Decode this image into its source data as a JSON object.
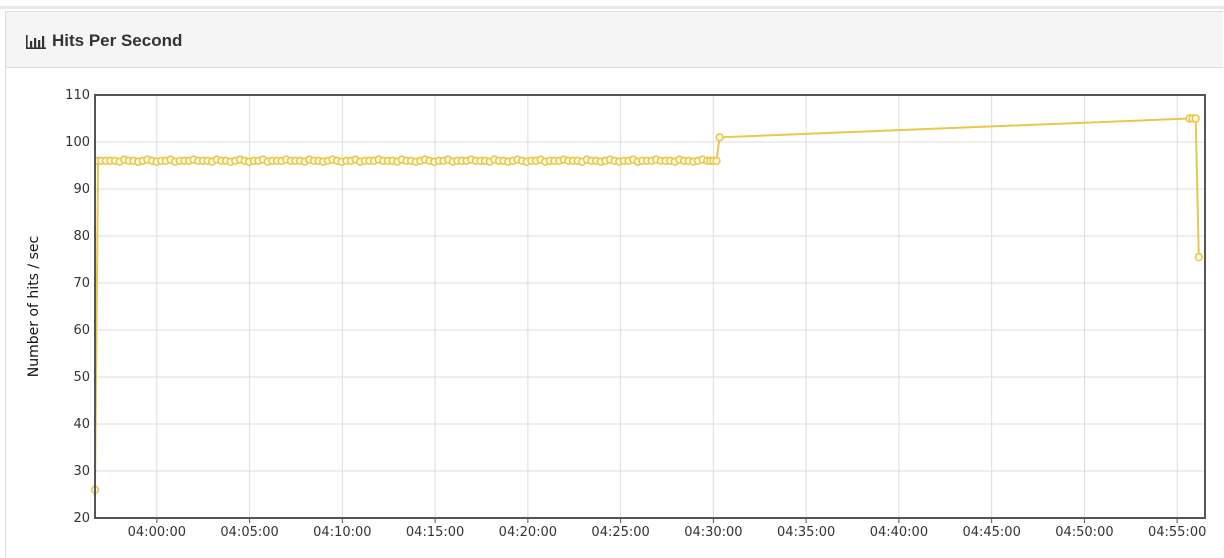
{
  "panel": {
    "title": "Hits Per Second",
    "icon": "bar-chart-icon"
  },
  "chart_data": {
    "type": "line",
    "title": "Hits Per Second",
    "xlabel": "",
    "ylabel": "Number of hits / sec",
    "ylim": [
      20,
      110
    ],
    "yticks": [
      20,
      30,
      40,
      50,
      60,
      70,
      80,
      90,
      100,
      110
    ],
    "xlim": [
      "03:56:40",
      "04:56:30"
    ],
    "xticks": [
      "04:00:00",
      "04:05:00",
      "04:10:00",
      "04:15:00",
      "04:20:00",
      "04:25:00",
      "04:30:00",
      "04:35:00",
      "04:40:00",
      "04:45:00",
      "04:50:00",
      "04:55:00"
    ],
    "grid": true,
    "legend": "none",
    "series_color": "#e8c74a",
    "series": [
      {
        "x": [
          "03:56:40",
          "03:56:50",
          "03:57:00",
          "04:29:40",
          "04:29:50",
          "04:30:00",
          "04:30:10",
          "04:30:20",
          "04:55:40",
          "04:55:50",
          "04:56:00",
          "04:56:10"
        ],
        "values": [
          26,
          96,
          96,
          96,
          96,
          96,
          96,
          101,
          105,
          105,
          105,
          75.5
        ]
      }
    ]
  }
}
